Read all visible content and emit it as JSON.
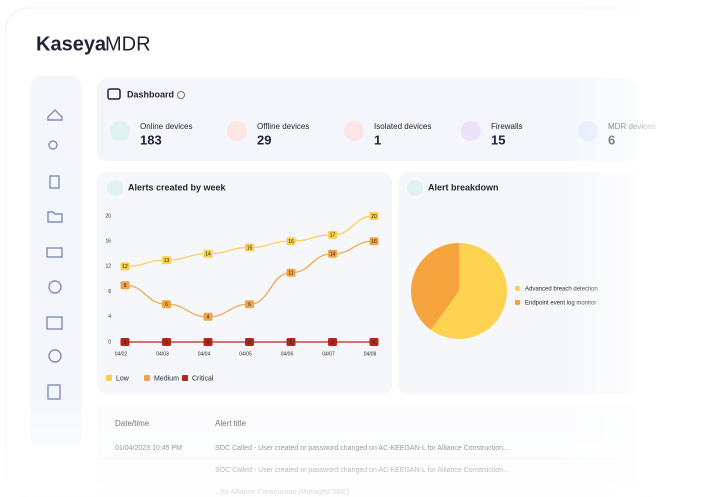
{
  "header": {
    "logo_bold": "Kaseya",
    "logo_light": "MDR"
  },
  "dashboard": {
    "title": "Dashboard"
  },
  "stats": [
    {
      "label": "Online devices",
      "value": "183"
    },
    {
      "label": "Offline devices",
      "value": "29"
    },
    {
      "label": "Isolated devices",
      "value": "1"
    },
    {
      "label": "Firewalls",
      "value": "15"
    },
    {
      "label": "MDR devices",
      "value": "6"
    }
  ],
  "chart_data": [
    {
      "type": "line",
      "title": "Alerts created by week",
      "categories": [
        "04/02",
        "04/03",
        "04/04",
        "04/05",
        "04/06",
        "04/07",
        "04/08"
      ],
      "ylim": [
        0,
        20
      ],
      "yticks": [
        0,
        4,
        8,
        12,
        16,
        20
      ],
      "grid": false,
      "series": [
        {
          "name": "Low",
          "color": "#f9cf4d",
          "values": [
            12,
            13,
            14,
            15,
            16,
            17,
            20
          ]
        },
        {
          "name": "Medium",
          "color": "#f0a445",
          "values": [
            9,
            6,
            4,
            6,
            11,
            14,
            16
          ]
        },
        {
          "name": "Critical",
          "color": "#b3261e",
          "values": [
            0,
            0,
            0,
            0,
            0,
            0,
            0
          ]
        }
      ]
    },
    {
      "type": "pie",
      "title": "Alert breakdown",
      "categories": [
        "Advanced breach detection",
        "Endpoint event log monitor"
      ],
      "values": [
        60,
        40
      ],
      "colors": [
        "#fdd250",
        "#f5a33c"
      ]
    }
  ],
  "table": {
    "columns": [
      "Date/time",
      "Alert title"
    ],
    "rows": [
      [
        "01/04/2023 10:45 PM",
        "SOC Called - User created or password changed on AC-KEEGAN-L for Alliance Construction..."
      ],
      [
        "",
        "SOC Called - User created or password changed on AC-KEEGAN-L for Alliance Construction..."
      ],
      [
        "",
        "...for Alliance Construction (Managed SOC)"
      ]
    ]
  }
}
